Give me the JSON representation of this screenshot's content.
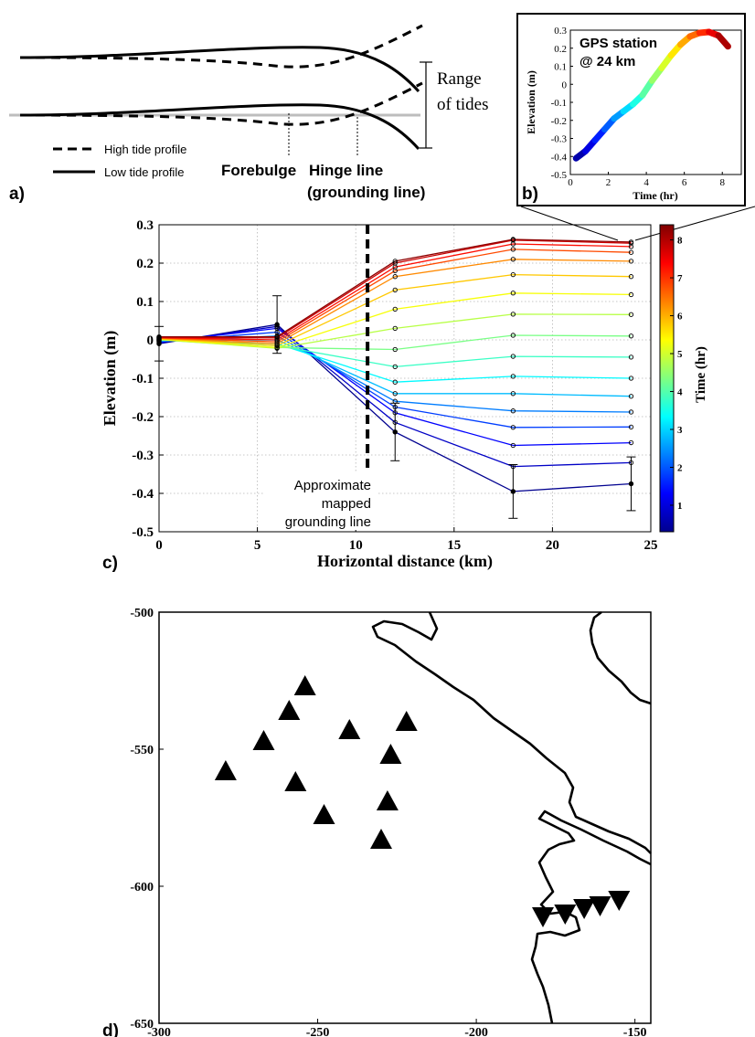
{
  "panel_a": {
    "label": "a)",
    "range_label_1": "Range",
    "range_label_2": "of tides",
    "legend_high": "High tide profile",
    "legend_low": "Low tide profile",
    "forebulge": "Forebulge",
    "hinge_1": "Hinge line",
    "hinge_2": "(grounding line)"
  },
  "panel_b": {
    "label": "b)"
  },
  "panel_c": {
    "label": "c)"
  },
  "panel_d": {
    "label": "d)"
  },
  "chart_data": [
    {
      "id": "b",
      "type": "line",
      "annotation": [
        "GPS station",
        "@ 24 km"
      ],
      "xlabel": "Time (hr)",
      "ylabel": "Elevation (m)",
      "xlim": [
        0,
        9
      ],
      "ylim": [
        -0.5,
        0.3
      ],
      "xticks": [
        0,
        2,
        4,
        6,
        8
      ],
      "yticks": [
        -0.5,
        -0.4,
        -0.3,
        -0.2,
        -0.1,
        0,
        0.1,
        0.2,
        0.3
      ],
      "x": [
        0.3,
        0.8,
        1.3,
        1.8,
        2.3,
        2.8,
        3.3,
        3.8,
        4.3,
        4.8,
        5.3,
        5.8,
        6.3,
        6.8,
        7.3,
        7.8,
        8.3
      ],
      "y": [
        -0.41,
        -0.37,
        -0.31,
        -0.25,
        -0.19,
        -0.15,
        -0.11,
        -0.06,
        0.02,
        0.09,
        0.16,
        0.22,
        0.265,
        0.285,
        0.29,
        0.27,
        0.21
      ],
      "colorbar": "time"
    },
    {
      "id": "c",
      "type": "line",
      "xlabel": "Horizontal distance (km)",
      "ylabel": "Elevation (m)",
      "xlim": [
        0,
        25
      ],
      "ylim": [
        -0.5,
        0.3
      ],
      "xticks": [
        0,
        5,
        10,
        15,
        20,
        25
      ],
      "yticks": [
        -0.5,
        -0.4,
        -0.3,
        -0.2,
        -0.1,
        0,
        0.1,
        0.2,
        0.3
      ],
      "x": [
        0,
        6,
        12,
        18,
        24
      ],
      "grid": true,
      "annotation": [
        "Approximate",
        "mapped",
        "grounding line"
      ],
      "grounding_line_x": 10.6,
      "colorbar": {
        "label": "Time (hr)",
        "range": [
          0.3,
          8.4
        ],
        "ticks": [
          1,
          2,
          3,
          4,
          5,
          6,
          7,
          8
        ],
        "colors": [
          "#00008f",
          "#0000ff",
          "#0080ff",
          "#00ffff",
          "#80ff80",
          "#ffff00",
          "#ff8000",
          "#ff0000",
          "#800000"
        ]
      },
      "series": [
        {
          "t": 0.3,
          "values": [
            -0.01,
            0.04,
            -0.24,
            -0.395,
            -0.375
          ]
        },
        {
          "t": 0.8,
          "values": [
            -0.008,
            0.035,
            -0.215,
            -0.33,
            -0.32
          ]
        },
        {
          "t": 1.3,
          "values": [
            -0.006,
            0.03,
            -0.19,
            -0.275,
            -0.268
          ]
        },
        {
          "t": 1.8,
          "values": [
            -0.004,
            0.02,
            -0.175,
            -0.228,
            -0.227
          ]
        },
        {
          "t": 2.3,
          "values": [
            -0.003,
            0.01,
            -0.16,
            -0.185,
            -0.188
          ]
        },
        {
          "t": 2.8,
          "values": [
            -0.002,
            0.0,
            -0.14,
            -0.14,
            -0.147
          ]
        },
        {
          "t": 3.3,
          "values": [
            -0.001,
            -0.01,
            -0.11,
            -0.095,
            -0.1
          ]
        },
        {
          "t": 3.8,
          "values": [
            0.0,
            -0.015,
            -0.07,
            -0.043,
            -0.045
          ]
        },
        {
          "t": 4.3,
          "values": [
            0.0,
            -0.02,
            -0.025,
            0.012,
            0.01
          ]
        },
        {
          "t": 4.8,
          "values": [
            0.001,
            -0.022,
            0.03,
            0.067,
            0.066
          ]
        },
        {
          "t": 5.3,
          "values": [
            0.002,
            -0.02,
            0.08,
            0.122,
            0.118
          ]
        },
        {
          "t": 5.8,
          "values": [
            0.003,
            -0.015,
            0.13,
            0.17,
            0.165
          ]
        },
        {
          "t": 6.3,
          "values": [
            0.004,
            -0.01,
            0.165,
            0.21,
            0.205
          ]
        },
        {
          "t": 6.8,
          "values": [
            0.005,
            -0.005,
            0.18,
            0.236,
            0.228
          ]
        },
        {
          "t": 7.3,
          "values": [
            0.006,
            0.0,
            0.19,
            0.25,
            0.243
          ]
        },
        {
          "t": 7.8,
          "values": [
            0.007,
            0.005,
            0.2,
            0.26,
            0.252
          ]
        },
        {
          "t": 8.3,
          "values": [
            0.008,
            0.008,
            0.205,
            0.262,
            0.255
          ]
        }
      ],
      "error_bars": [
        {
          "x": 0,
          "y": -0.01,
          "err": 0.045
        },
        {
          "x": 6,
          "y": 0.04,
          "err": 0.075
        },
        {
          "x": 12,
          "y": -0.24,
          "err": 0.075
        },
        {
          "x": 18,
          "y": -0.395,
          "err": 0.07
        },
        {
          "x": 24,
          "y": -0.375,
          "err": 0.07
        }
      ]
    },
    {
      "id": "d",
      "type": "scatter",
      "xlim": [
        -300,
        -145
      ],
      "ylim": [
        -650,
        -500
      ],
      "xticks": [
        -300,
        -250,
        -200,
        -150
      ],
      "yticks": [
        -500,
        -550,
        -600,
        -650
      ],
      "series": [
        {
          "marker": "triangle-up",
          "x": [
            -279,
            -267,
            -259,
            -254,
            -257,
            -248,
            -240,
            -230,
            -228,
            -227,
            -222
          ],
          "y": [
            -558,
            -547,
            -536,
            -527,
            -562,
            -574,
            -543,
            -583,
            -569,
            -552,
            -540
          ]
        },
        {
          "marker": "triangle-down",
          "x": [
            -179,
            -172,
            -166,
            -161,
            -155
          ],
          "y": [
            -611,
            -610,
            -608,
            -607,
            -605
          ]
        }
      ]
    }
  ]
}
